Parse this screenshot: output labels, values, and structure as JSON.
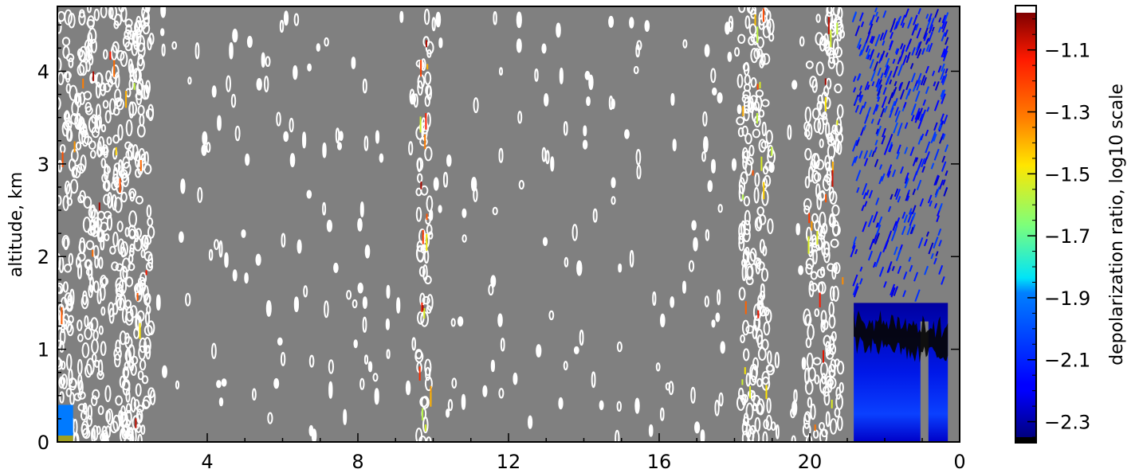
{
  "chart_data": {
    "type": "heatmap",
    "title": "",
    "xlabel": "",
    "ylabel": "altitude, km",
    "x_ticks": [
      "4",
      "8",
      "12",
      "16",
      "20",
      "0"
    ],
    "y_ticks": [
      "0",
      "1",
      "2",
      "3",
      "4"
    ],
    "ylim": [
      0,
      4.7
    ],
    "background_color": "#808080",
    "colorbar": {
      "label": "depolarization ratio, log10 scale",
      "ticks": [
        "−1.1",
        "−1.3",
        "−1.5",
        "−1.7",
        "−1.9",
        "−2.1",
        "−2.3"
      ],
      "range": [
        -2.35,
        -0.98
      ],
      "colormap": "jet",
      "over_color": "#ffffff",
      "under_color": "#000000"
    },
    "features": [
      {
        "type": "clear-air-speckle",
        "value": "masked",
        "x_from": 0.0,
        "x_to": 2.4,
        "alt_from": 0.0,
        "alt_to": 4.7
      },
      {
        "type": "clear-air-speckle",
        "value": "masked",
        "x_from": 9.2,
        "x_to": 9.5,
        "alt_from": 0.0,
        "alt_to": 4.7
      },
      {
        "type": "clear-air-speckle",
        "value": "masked",
        "x_from": 17.4,
        "x_to": 18.2,
        "alt_from": 0.0,
        "alt_to": 4.7
      },
      {
        "type": "clear-air-speckle",
        "value": "masked",
        "x_from": 19.1,
        "x_to": 20.0,
        "alt_from": 0.0,
        "alt_to": 4.7
      },
      {
        "type": "depolarization-layer",
        "value": -2.15,
        "x_from": 20.3,
        "x_to": 22.7,
        "alt_from": 1.6,
        "alt_to": 4.7
      },
      {
        "type": "boundary-layer",
        "value": -2.25,
        "x_from": 20.3,
        "x_to": 22.7,
        "alt_from": 0.0,
        "alt_to": 1.5
      },
      {
        "type": "boundary-layer-top",
        "value": -2.35,
        "x_from": 20.3,
        "x_to": 22.7,
        "alt_from": 0.8,
        "alt_to": 1.45
      },
      {
        "type": "surface-layer",
        "value": -1.9,
        "x_from": 0.0,
        "x_to": 0.4,
        "alt_from": 0.0,
        "alt_to": 0.4
      }
    ]
  }
}
